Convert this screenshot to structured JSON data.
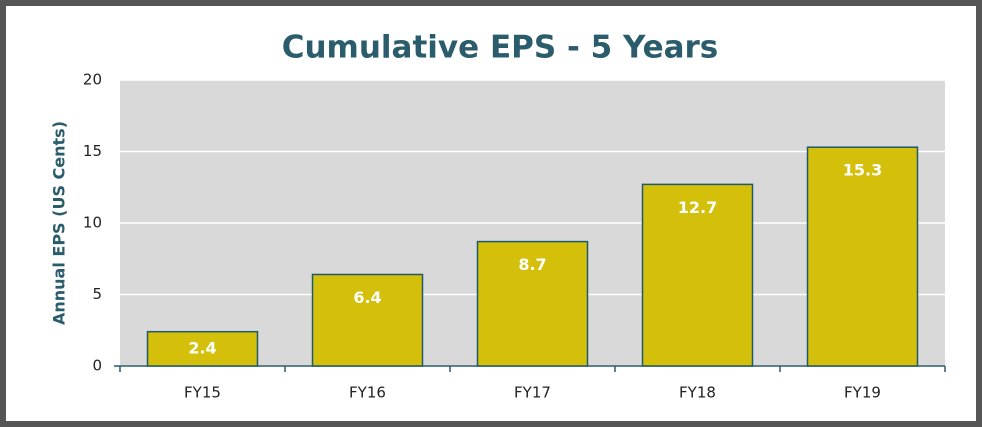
{
  "chart_data": {
    "type": "bar",
    "title": "Cumulative EPS - 5 Years",
    "y_label": "Annual EPS (US Cents)",
    "categories": [
      "FY15",
      "FY16",
      "FY17",
      "FY18",
      "FY19"
    ],
    "values": [
      2.4,
      6.4,
      8.7,
      12.7,
      15.3
    ],
    "color": "#d4bf0b",
    "ylim": [
      0,
      20
    ],
    "yticks": [
      0,
      5,
      10,
      15,
      20
    ],
    "grid": true
  }
}
